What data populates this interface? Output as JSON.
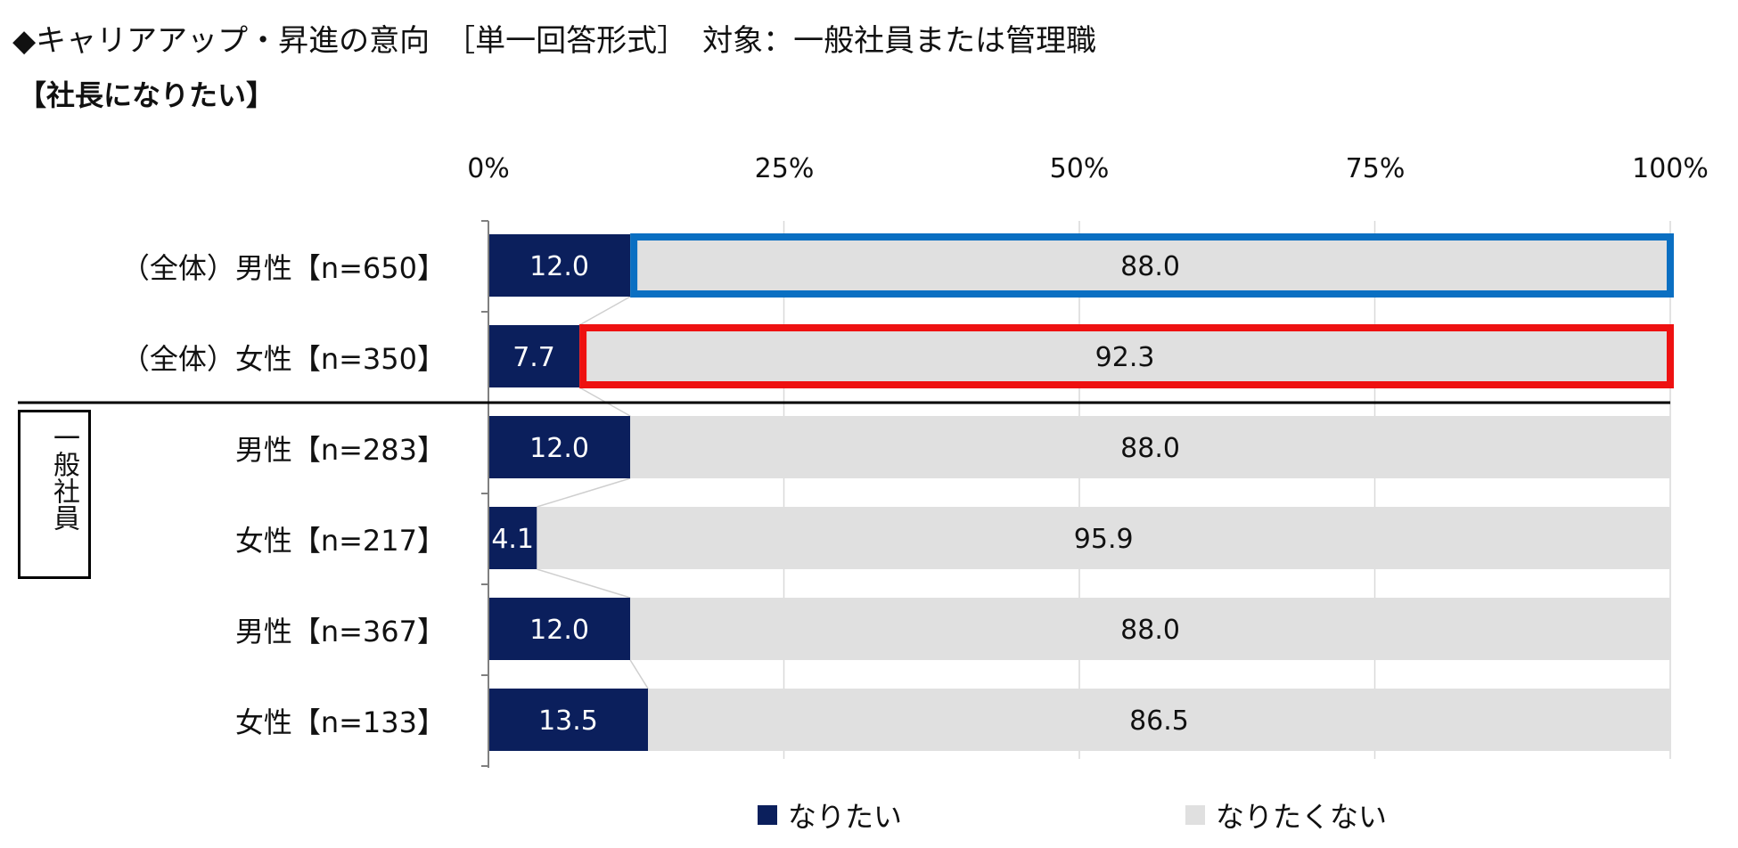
{
  "header": {
    "title": "◆キャリアアップ・昇進の意向　［単一回答形式］　対象：一般社員または管理職",
    "subtitle": "【社長になりたい】"
  },
  "group_label": "一般社員",
  "chart_data": {
    "type": "bar",
    "orientation": "horizontal",
    "stacked": "100%",
    "x_ticks": [
      "0%",
      "25%",
      "50%",
      "75%",
      "100%"
    ],
    "xlim": [
      0,
      100
    ],
    "categories": [
      "（全体）男性【n=650】",
      "（全体）女性【n=350】",
      "男性【n=283】",
      "女性【n=217】",
      "男性【n=367】",
      "女性【n=133】"
    ],
    "series": [
      {
        "name": "なりたい",
        "color": "#0b1f5c",
        "values": [
          12.0,
          7.7,
          12.0,
          4.1,
          12.0,
          13.5
        ],
        "labels": [
          "12.0",
          "7.7",
          "12.0",
          "4.1",
          "12.0",
          "13.5"
        ]
      },
      {
        "name": "なりたくない",
        "color": "#e0e0e0",
        "values": [
          88.0,
          92.3,
          88.0,
          95.9,
          88.0,
          86.5
        ],
        "labels": [
          "88.0",
          "92.3",
          "88.0",
          "95.9",
          "88.0",
          "86.5"
        ]
      }
    ],
    "highlights": [
      {
        "row": 0,
        "series": 1,
        "color": "#0a6fc2"
      },
      {
        "row": 1,
        "series": 1,
        "color": "#ee1111"
      }
    ],
    "legend": {
      "position": "bottom"
    },
    "grid": true
  }
}
